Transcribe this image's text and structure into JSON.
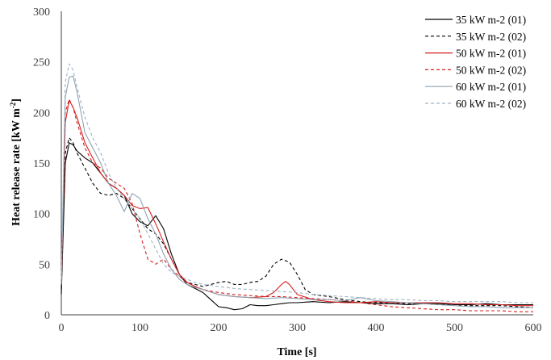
{
  "chart_data": {
    "type": "line",
    "xlabel": "Time [s]",
    "ylabel": "Heat release rate [kW m",
    "ylabel_sup": "-2",
    "ylabel_close": "]",
    "xlim": [
      0,
      600
    ],
    "ylim": [
      0,
      300
    ],
    "xticks": [
      "0",
      "100",
      "200",
      "300",
      "400",
      "500",
      "600"
    ],
    "yticks": [
      "0",
      "50",
      "100",
      "150",
      "200",
      "250",
      "300"
    ],
    "grid": false,
    "legend_position": "top-right",
    "series": [
      {
        "name": "35 kW m-2 (01)",
        "color": "#000000",
        "dash": "solid",
        "x": [
          0,
          5,
          10,
          15,
          20,
          30,
          40,
          50,
          60,
          70,
          80,
          90,
          100,
          110,
          120,
          130,
          140,
          150,
          160,
          170,
          180,
          190,
          200,
          210,
          220,
          230,
          240,
          250,
          260,
          270,
          280,
          290,
          300,
          320,
          340,
          360,
          380,
          400,
          420,
          440,
          460,
          480,
          500,
          520,
          540,
          560,
          580,
          600
        ],
        "y": [
          20,
          150,
          170,
          168,
          162,
          155,
          150,
          140,
          130,
          125,
          118,
          100,
          92,
          88,
          98,
          85,
          60,
          40,
          30,
          26,
          22,
          15,
          8,
          7,
          5,
          6,
          10,
          9,
          9,
          10,
          11,
          12,
          12,
          13,
          12,
          13,
          12,
          11,
          11,
          10,
          11,
          11,
          10,
          10,
          11,
          10,
          10,
          10
        ]
      },
      {
        "name": "35 kW m-2 (02)",
        "color": "#000000",
        "dash": "4,3",
        "x": [
          0,
          5,
          10,
          15,
          20,
          30,
          40,
          50,
          60,
          70,
          80,
          90,
          100,
          110,
          120,
          130,
          140,
          150,
          160,
          170,
          180,
          190,
          200,
          210,
          220,
          230,
          240,
          250,
          260,
          270,
          280,
          290,
          300,
          310,
          320,
          340,
          360,
          380,
          400,
          420,
          440,
          460,
          480,
          500,
          520,
          540,
          560,
          580,
          600
        ],
        "y": [
          25,
          160,
          175,
          170,
          160,
          145,
          130,
          120,
          118,
          120,
          115,
          105,
          95,
          85,
          80,
          70,
          55,
          40,
          32,
          30,
          28,
          30,
          32,
          33,
          30,
          30,
          32,
          33,
          38,
          50,
          55,
          52,
          40,
          25,
          20,
          18,
          15,
          13,
          12,
          12,
          11,
          11,
          10,
          10,
          9,
          9,
          9,
          8,
          7
        ]
      },
      {
        "name": "50 kW m-2 (01)",
        "color": "#d62020",
        "dash": "solid",
        "x": [
          0,
          5,
          10,
          15,
          20,
          30,
          40,
          50,
          60,
          70,
          80,
          90,
          100,
          110,
          120,
          130,
          140,
          150,
          160,
          170,
          180,
          200,
          220,
          240,
          260,
          270,
          280,
          285,
          290,
          300,
          320,
          340,
          360,
          380,
          400,
          420,
          440,
          460,
          480,
          500,
          520,
          540,
          560,
          580,
          600
        ],
        "y": [
          30,
          190,
          212,
          205,
          195,
          170,
          155,
          140,
          130,
          125,
          118,
          108,
          105,
          106,
          90,
          72,
          55,
          40,
          32,
          28,
          25,
          20,
          18,
          17,
          18,
          22,
          30,
          33,
          30,
          20,
          15,
          13,
          12,
          12,
          13,
          12,
          12,
          12,
          12,
          11,
          11,
          10,
          10,
          9,
          9
        ]
      },
      {
        "name": "50 kW m-2 (02)",
        "color": "#d62020",
        "dash": "4,3",
        "x": [
          0,
          5,
          10,
          15,
          20,
          30,
          40,
          50,
          60,
          70,
          80,
          90,
          100,
          110,
          120,
          130,
          140,
          150,
          160,
          170,
          180,
          200,
          220,
          240,
          260,
          280,
          300,
          320,
          340,
          360,
          380,
          400,
          420,
          440,
          460,
          480,
          500,
          520,
          540,
          560,
          580,
          600
        ],
        "y": [
          30,
          200,
          213,
          205,
          190,
          165,
          150,
          145,
          135,
          130,
          125,
          110,
          80,
          55,
          50,
          55,
          45,
          38,
          32,
          28,
          25,
          22,
          20,
          19,
          18,
          18,
          17,
          16,
          15,
          14,
          12,
          10,
          8,
          7,
          6,
          5,
          5,
          4,
          4,
          4,
          3,
          3
        ]
      },
      {
        "name": "60 kW m-2 (01)",
        "color": "#8fa3b3",
        "dash": "solid",
        "x": [
          0,
          5,
          10,
          15,
          20,
          30,
          40,
          50,
          60,
          70,
          80,
          90,
          100,
          110,
          120,
          130,
          140,
          150,
          160,
          170,
          180,
          200,
          220,
          240,
          260,
          280,
          300,
          320,
          340,
          360,
          380,
          400,
          420,
          440,
          460,
          480,
          500,
          520,
          540,
          560,
          580,
          600
        ],
        "y": [
          30,
          215,
          235,
          236,
          220,
          180,
          165,
          150,
          130,
          118,
          102,
          120,
          115,
          95,
          80,
          60,
          45,
          35,
          30,
          27,
          25,
          20,
          18,
          17,
          16,
          17,
          16,
          15,
          15,
          14,
          17,
          14,
          13,
          12,
          11,
          10,
          9,
          8,
          8,
          7,
          7,
          7
        ]
      },
      {
        "name": "60 kW m-2 (02)",
        "color": "#9fb3c3",
        "dash": "4,3",
        "x": [
          0,
          5,
          10,
          15,
          20,
          30,
          40,
          50,
          60,
          70,
          80,
          90,
          100,
          110,
          120,
          130,
          140,
          150,
          160,
          170,
          180,
          200,
          220,
          240,
          260,
          280,
          300,
          320,
          340,
          360,
          380,
          400,
          420,
          440,
          460,
          480,
          500,
          520,
          540,
          560,
          580,
          600
        ],
        "y": [
          35,
          230,
          248,
          242,
          225,
          195,
          175,
          160,
          140,
          125,
          115,
          105,
          95,
          80,
          65,
          50,
          42,
          38,
          35,
          32,
          30,
          28,
          26,
          25,
          24,
          23,
          22,
          20,
          19,
          18,
          17,
          16,
          15,
          15,
          14,
          14,
          13,
          13,
          13,
          13,
          12,
          12
        ]
      }
    ]
  }
}
